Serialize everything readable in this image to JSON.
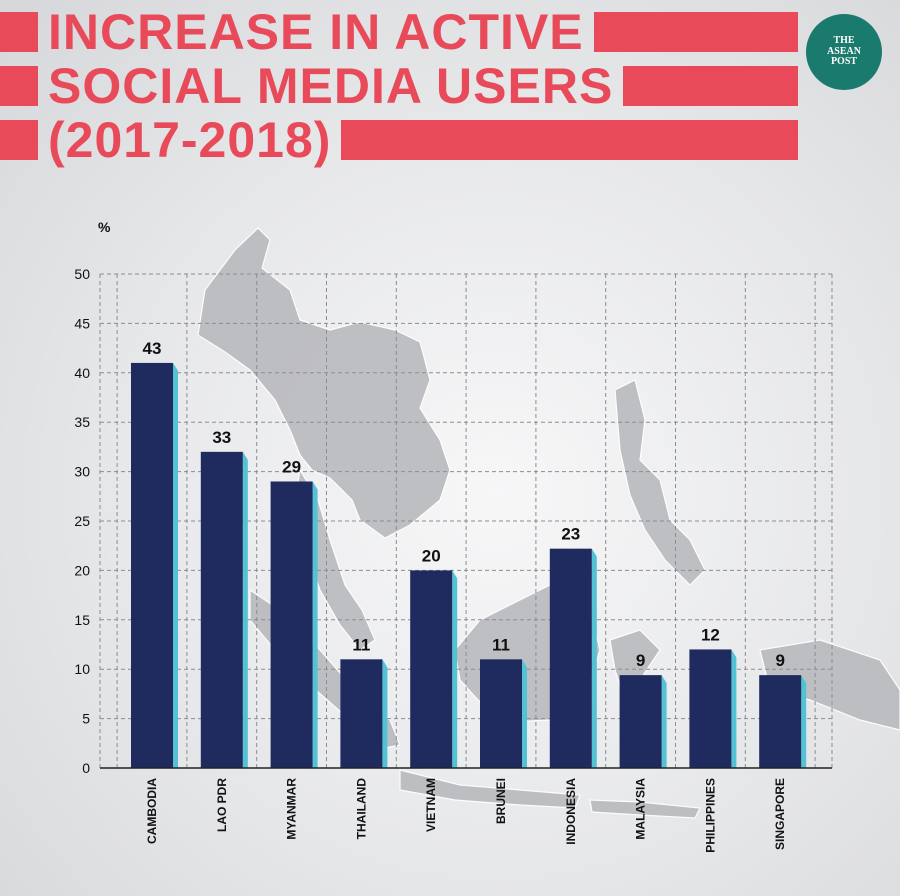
{
  "title": {
    "line1": "INCREASE IN ACTIVE",
    "line2": "SOCIAL MEDIA USERS",
    "line3": "(2017-2018)"
  },
  "logo": {
    "line1": "THE",
    "line2": "ASEAN",
    "line3": "POST"
  },
  "colors": {
    "accent": "#e84a5a",
    "bar": "#1f2b5e",
    "bar_side": "#52c2d4",
    "logo_bg": "#1b7a6e"
  },
  "chart_data": {
    "type": "bar",
    "ylabel": "%",
    "xlabel": "",
    "ylim": [
      0,
      50
    ],
    "yticks": [
      0,
      5,
      10,
      15,
      20,
      25,
      30,
      35,
      40,
      45,
      50
    ],
    "grid": true,
    "categories": [
      "CAMBODIA",
      "LAO PDR",
      "MYANMAR",
      "THAILAND",
      "VIETNAM",
      "BRUNEI",
      "INDONESIA",
      "MALAYSIA",
      "PHILIPPINES",
      "SINGAPORE"
    ],
    "values": [
      43,
      33,
      29,
      11,
      20,
      11,
      23,
      9,
      12,
      9
    ],
    "drawn_heights": [
      41,
      32,
      29,
      11,
      20,
      11,
      22.2,
      9.4,
      12,
      9.4
    ]
  }
}
